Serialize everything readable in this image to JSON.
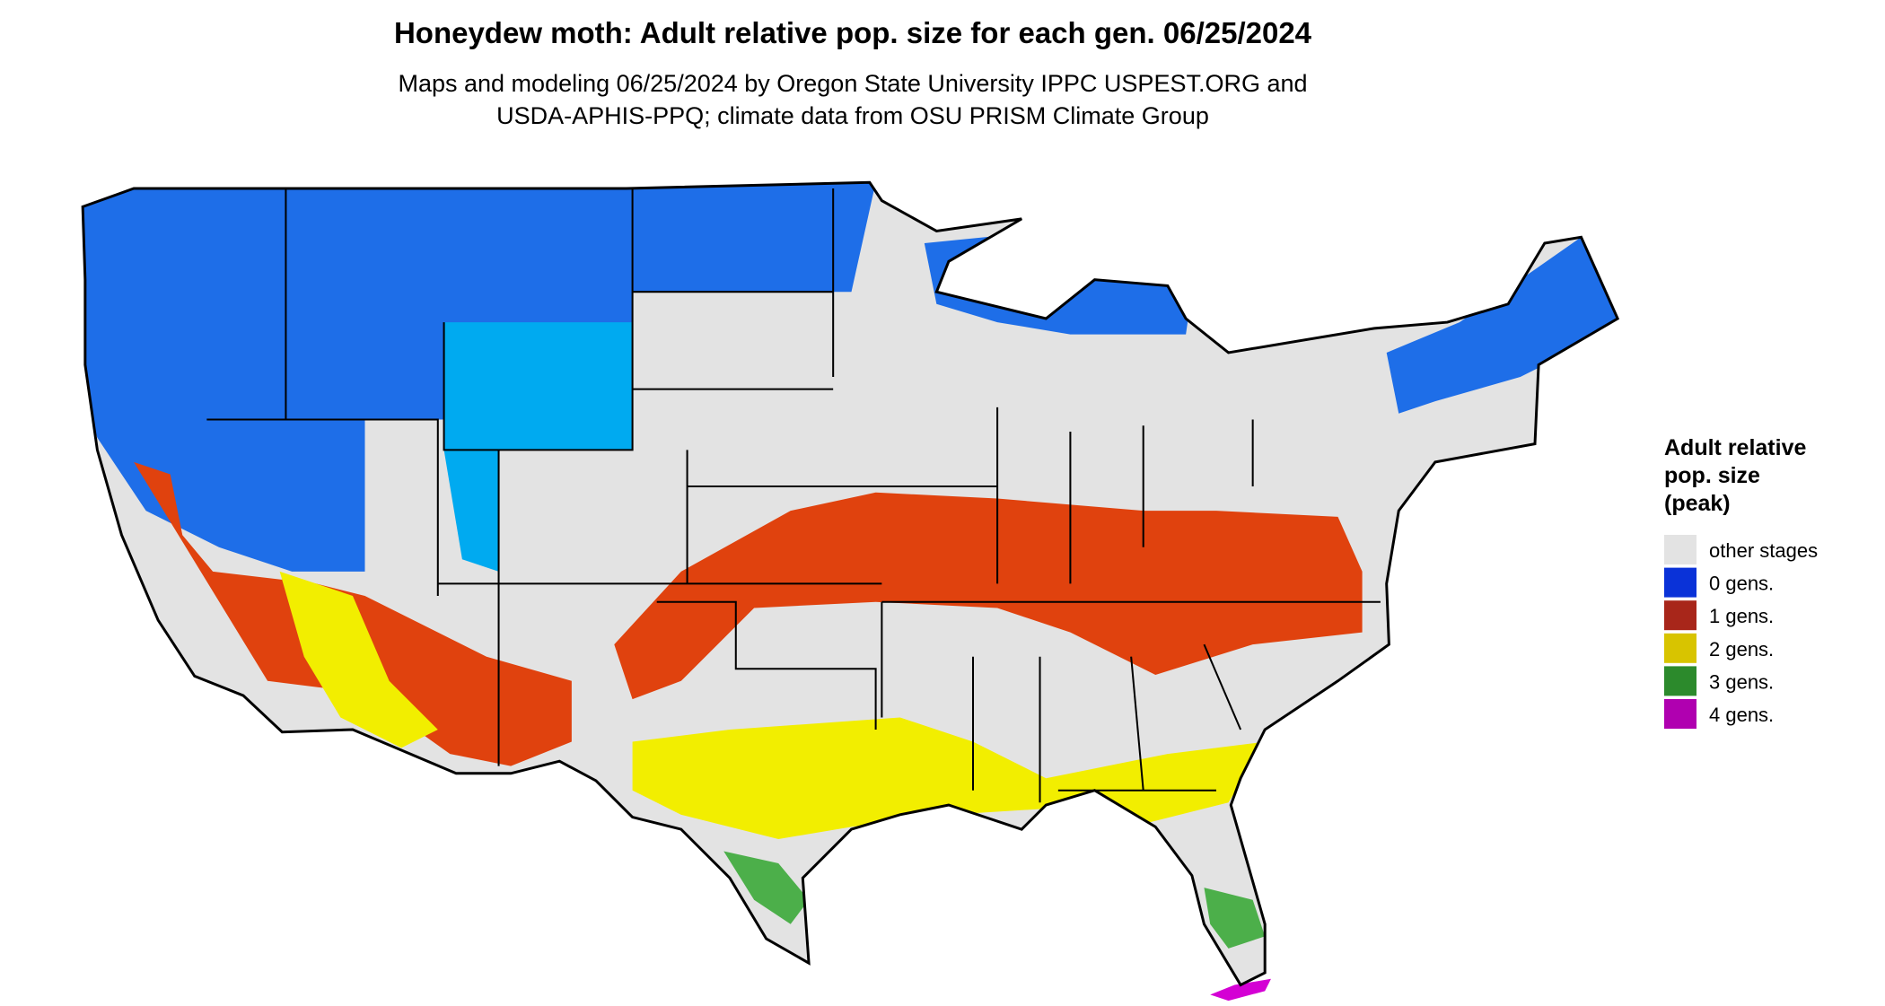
{
  "title": "Honeydew moth: Adult relative pop. size for each gen. 06/25/2024",
  "subtitle": [
    "Maps and modeling 06/25/2024 by Oregon State University IPPC USPEST.ORG and",
    "USDA-APHIS-PPQ; climate data from OSU PRISM Climate Group"
  ],
  "legend": {
    "title": [
      "Adult relative",
      "pop. size",
      "(peak)"
    ],
    "items": [
      {
        "label": "other stages",
        "color": "#e3e3e3"
      },
      {
        "label": "0 gens.",
        "color": "#0a32d8"
      },
      {
        "label": "1 gens.",
        "color": "#a8261a"
      },
      {
        "label": "2 gens.",
        "color": "#d8c400"
      },
      {
        "label": "3 gens.",
        "color": "#2c8a2c"
      },
      {
        "label": "4 gens.",
        "color": "#b000b0"
      }
    ]
  }
}
